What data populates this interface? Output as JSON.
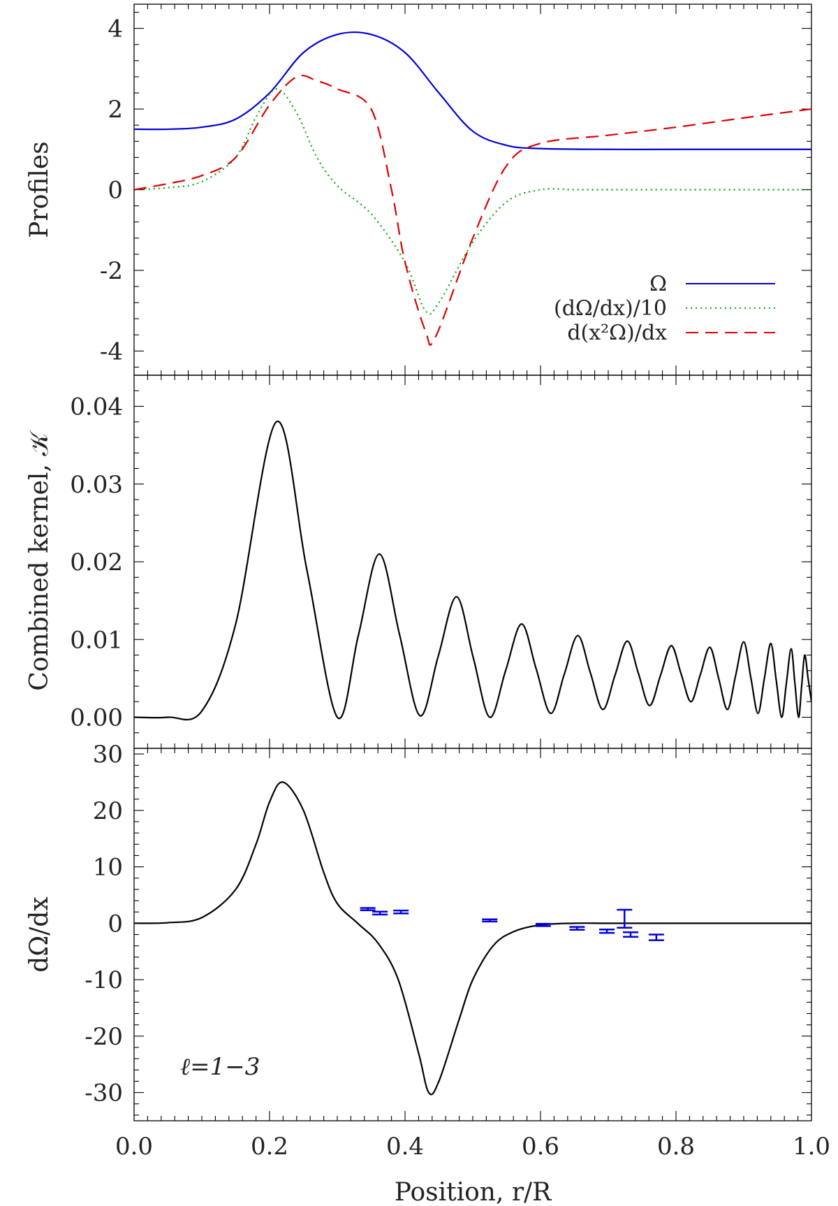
{
  "chart_data": [
    {
      "type": "line",
      "panel": "top",
      "ylabel": "Profiles",
      "ylim": [
        -4.6,
        4.6
      ],
      "yticks": [
        4,
        2,
        0,
        -2,
        -4
      ],
      "ytick_labels": [
        "4",
        "2",
        "0",
        "-2",
        "-4"
      ],
      "xlim": [
        0,
        1
      ],
      "legend_position": "bottom-right",
      "series": [
        {
          "name": "Ω",
          "color": "#0000dd",
          "style": "solid",
          "x": [
            0,
            0.05,
            0.1,
            0.15,
            0.2,
            0.25,
            0.3,
            0.35,
            0.4,
            0.45,
            0.5,
            0.55,
            0.6,
            0.7,
            0.8,
            0.9,
            1.0
          ],
          "y": [
            1.5,
            1.5,
            1.55,
            1.75,
            2.4,
            3.4,
            3.85,
            3.85,
            3.4,
            2.4,
            1.45,
            1.1,
            1.02,
            1.0,
            1.0,
            1.0,
            1.0
          ]
        },
        {
          "name": "(dΩ/dx)/10",
          "color": "#00aa00",
          "style": "dotted",
          "x": [
            0,
            0.05,
            0.1,
            0.15,
            0.18,
            0.21,
            0.24,
            0.27,
            0.3,
            0.35,
            0.4,
            0.43,
            0.45,
            0.5,
            0.55,
            0.6,
            0.65,
            0.7,
            0.8,
            0.9,
            1.0
          ],
          "y": [
            0,
            0.05,
            0.2,
            0.8,
            1.8,
            2.5,
            1.9,
            0.8,
            0.1,
            -0.6,
            -1.8,
            -3.0,
            -2.8,
            -1.3,
            -0.3,
            0.0,
            0.0,
            0.0,
            0.0,
            0.0,
            0.0
          ]
        },
        {
          "name": "d(x²Ω)/dx",
          "color": "#dd0000",
          "style": "dashed",
          "x": [
            0,
            0.05,
            0.1,
            0.15,
            0.2,
            0.24,
            0.27,
            0.3,
            0.35,
            0.38,
            0.4,
            0.43,
            0.445,
            0.5,
            0.55,
            0.6,
            0.7,
            0.8,
            0.9,
            1.0
          ],
          "y": [
            0,
            0.15,
            0.35,
            0.8,
            2.1,
            2.8,
            2.7,
            2.5,
            2.0,
            0.0,
            -1.8,
            -3.5,
            -3.65,
            -1.2,
            0.6,
            1.15,
            1.35,
            1.55,
            1.78,
            2.0
          ]
        }
      ]
    },
    {
      "type": "line",
      "panel": "middle",
      "ylabel": "Combined kernel, 𝒦",
      "ylim": [
        -0.004,
        0.044
      ],
      "yticks": [
        0.04,
        0.03,
        0.02,
        0.01,
        0.0
      ],
      "ytick_labels": [
        "0.04",
        "0.03",
        "0.02",
        "0.01",
        "0.00"
      ],
      "xlim": [
        0,
        1
      ],
      "series": [
        {
          "name": "kernel",
          "color": "#000000",
          "style": "solid",
          "peaks": [
            {
              "x": 0.21,
              "y": 0.038
            },
            {
              "x": 0.362,
              "y": 0.021
            },
            {
              "x": 0.476,
              "y": 0.0155
            },
            {
              "x": 0.572,
              "y": 0.012
            },
            {
              "x": 0.655,
              "y": 0.0105
            },
            {
              "x": 0.728,
              "y": 0.0098
            },
            {
              "x": 0.793,
              "y": 0.0092
            },
            {
              "x": 0.85,
              "y": 0.009
            },
            {
              "x": 0.9,
              "y": 0.0097
            },
            {
              "x": 0.94,
              "y": 0.0095
            },
            {
              "x": 0.97,
              "y": 0.0088
            },
            {
              "x": 0.99,
              "y": 0.008
            }
          ],
          "troughs": [
            {
              "x": 0.3,
              "y": 0.0
            },
            {
              "x": 0.422,
              "y": 0.0002
            },
            {
              "x": 0.525,
              "y": 0.0
            },
            {
              "x": 0.615,
              "y": 0.0005
            },
            {
              "x": 0.692,
              "y": 0.001
            },
            {
              "x": 0.761,
              "y": 0.0015
            },
            {
              "x": 0.822,
              "y": 0.002
            },
            {
              "x": 0.876,
              "y": 0.001
            },
            {
              "x": 0.921,
              "y": 0.0005
            },
            {
              "x": 0.956,
              "y": 0.0
            },
            {
              "x": 0.981,
              "y": 0.0
            },
            {
              "x": 1.0,
              "y": 0.002
            }
          ]
        }
      ]
    },
    {
      "type": "line",
      "panel": "bottom",
      "ylabel": "dΩ/dx",
      "xlabel": "Position, r/R",
      "ylim": [
        -35,
        31
      ],
      "yticks": [
        30,
        20,
        10,
        0,
        -10,
        -20,
        -30
      ],
      "ytick_labels": [
        "30",
        "20",
        "10",
        "0",
        "-10",
        "-20",
        "-30"
      ],
      "xlim": [
        0,
        1
      ],
      "xticks": [
        0.0,
        0.2,
        0.4,
        0.6,
        0.8,
        1.0
      ],
      "xtick_labels": [
        "0.0",
        "0.2",
        "0.4",
        "0.6",
        "0.8",
        "1.0"
      ],
      "annotation": "ℓ=1−3",
      "series": [
        {
          "name": "dΩ/dx",
          "color": "#000000",
          "style": "solid",
          "x": [
            0,
            0.05,
            0.1,
            0.15,
            0.18,
            0.2,
            0.22,
            0.25,
            0.28,
            0.3,
            0.33,
            0.36,
            0.39,
            0.42,
            0.435,
            0.45,
            0.48,
            0.5,
            0.53,
            0.56,
            0.6,
            0.65,
            0.7,
            0.8,
            0.9,
            1.0
          ],
          "y": [
            0,
            0.1,
            1.0,
            6.0,
            14.0,
            21.5,
            25.0,
            20.0,
            9.0,
            3.5,
            0.0,
            -3.5,
            -10.0,
            -23.0,
            -30.0,
            -28.0,
            -17.0,
            -10.0,
            -4.0,
            -1.5,
            -0.3,
            0.0,
            0.0,
            0.0,
            0.0,
            0.0
          ]
        },
        {
          "name": "measurements",
          "color": "#0000dd",
          "style": "errorbar",
          "points": [
            {
              "x": 0.345,
              "y": 2.5,
              "err": 0.2
            },
            {
              "x": 0.363,
              "y": 1.8,
              "err": 0.25
            },
            {
              "x": 0.394,
              "y": 2.0,
              "err": 0.25
            },
            {
              "x": 0.525,
              "y": 0.5,
              "err": 0.2
            },
            {
              "x": 0.604,
              "y": -0.3,
              "err": 0.2
            },
            {
              "x": 0.654,
              "y": -0.9,
              "err": 0.25
            },
            {
              "x": 0.698,
              "y": -1.4,
              "err": 0.3
            },
            {
              "x": 0.724,
              "y": 0.8,
              "err": 1.6
            },
            {
              "x": 0.733,
              "y": -2.0,
              "err": 0.4
            },
            {
              "x": 0.771,
              "y": -2.5,
              "err": 0.5
            }
          ]
        }
      ]
    }
  ]
}
